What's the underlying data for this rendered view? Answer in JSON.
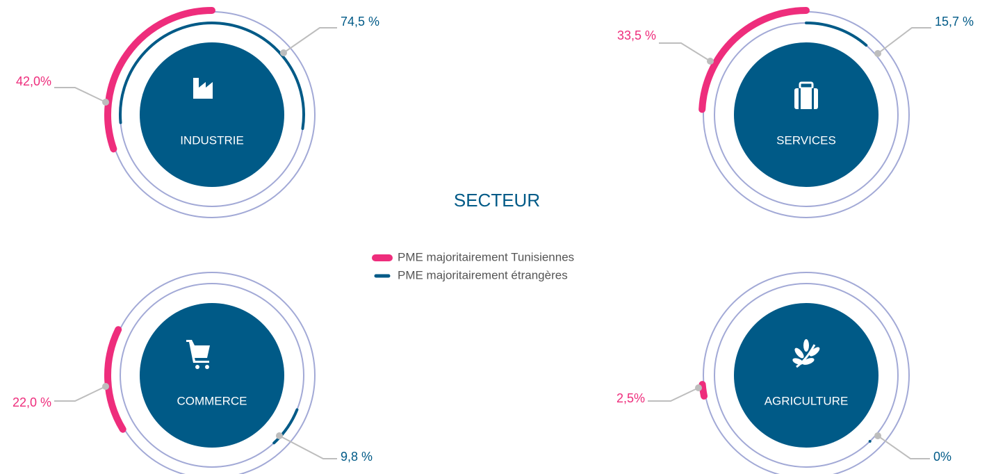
{
  "chart_data": {
    "type": "radial-bar",
    "title": "SECTEUR",
    "categories": [
      "INDUSTRIE",
      "SERVICES",
      "COMMERCE",
      "AGRICULTURE"
    ],
    "series": [
      {
        "name": "PME majoritairement Tunisiennes",
        "color": "#ee2d7c",
        "values": [
          42.0,
          33.5,
          22.0,
          2.5
        ],
        "value_labels": [
          "42,0%",
          "33,5 %",
          "22,0 %",
          "2,5%"
        ]
      },
      {
        "name": "PME majoritairement étrangères",
        "color": "#005a87",
        "values": [
          74.5,
          15.7,
          9.8,
          0
        ],
        "value_labels": [
          "74,5 %",
          "15,7 %",
          "9,8 %",
          "0%"
        ]
      }
    ]
  }
}
